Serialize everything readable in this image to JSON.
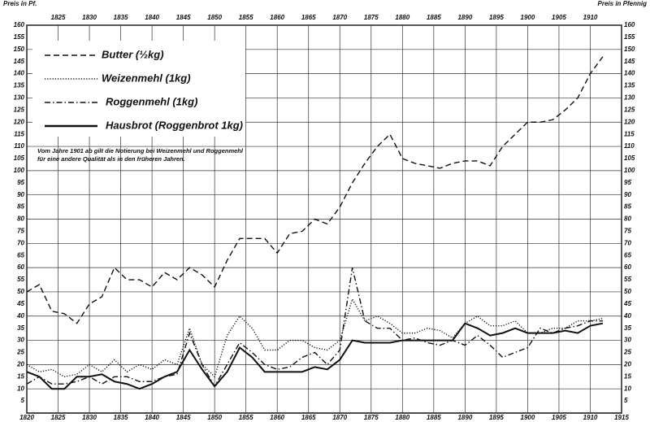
{
  "chart_data": {
    "type": "line",
    "y_label_left": "Preis in Pf.",
    "y_label_right": "Preis in Pfennig",
    "note": "Vom Jahre 1901 ab gilt die Notierung bei Weizenmehl und Roggenmehl für eine andere Qualität als in den früheren Jahren.",
    "x": [
      1820,
      1822,
      1824,
      1826,
      1828,
      1830,
      1832,
      1834,
      1836,
      1838,
      1840,
      1842,
      1844,
      1846,
      1848,
      1850,
      1852,
      1854,
      1856,
      1858,
      1860,
      1862,
      1864,
      1866,
      1868,
      1870,
      1872,
      1874,
      1876,
      1878,
      1880,
      1882,
      1884,
      1886,
      1888,
      1890,
      1892,
      1894,
      1896,
      1898,
      1900,
      1902,
      1904,
      1906,
      1908,
      1910,
      1912
    ],
    "series": [
      {
        "name": "Butter (½kg)",
        "color": "#111111",
        "dash": "dashed",
        "values": [
          50,
          53,
          42,
          41,
          37,
          45,
          48,
          60,
          55,
          55,
          52,
          58,
          55,
          60,
          57,
          52,
          63,
          72,
          72,
          72,
          66,
          74,
          75,
          80,
          78,
          85,
          95,
          103,
          110,
          115,
          105,
          103,
          102,
          101,
          103,
          104,
          104,
          102,
          110,
          115,
          120,
          120,
          121,
          125,
          130,
          140,
          147
        ]
      },
      {
        "name": "Weizenmehl (1kg)",
        "color": "#111111",
        "dash": "dotted",
        "values": [
          20,
          17,
          18,
          15,
          16,
          20,
          17,
          22,
          17,
          20,
          18,
          22,
          20,
          35,
          20,
          15,
          32,
          40,
          35,
          26,
          26,
          30,
          30,
          27,
          26,
          30,
          47,
          38,
          40,
          37,
          33,
          33,
          35,
          34,
          31,
          37,
          40,
          36,
          36,
          38,
          33,
          33,
          35,
          35,
          38,
          38,
          39
        ]
      },
      {
        "name": "Roggenmehl (1kg)",
        "color": "#111111",
        "dash": "dashdot",
        "values": [
          12,
          15,
          12,
          12,
          13,
          15,
          12,
          15,
          15,
          13,
          13,
          15,
          16,
          33,
          20,
          11,
          20,
          29,
          25,
          20,
          18,
          19,
          23,
          25,
          20,
          26,
          60,
          38,
          35,
          35,
          30,
          31,
          29,
          28,
          30,
          28,
          32,
          28,
          23,
          25,
          27,
          35,
          33,
          35,
          36,
          38,
          38
        ]
      },
      {
        "name": "Hausbrot (Roggenbrot 1kg)",
        "color": "#111111",
        "dash": "solid",
        "values": [
          17,
          15,
          10,
          10,
          15,
          15,
          16,
          13,
          12,
          10,
          12,
          15,
          17,
          26,
          18,
          11,
          17,
          27,
          23,
          17,
          17,
          17,
          17,
          19,
          18,
          22,
          30,
          29,
          29,
          29,
          30,
          30,
          30,
          30,
          30,
          37,
          35,
          32,
          33,
          35,
          33,
          33,
          33,
          34,
          33,
          36,
          37
        ]
      }
    ],
    "xlim": [
      1820,
      1915
    ],
    "xticks": [
      1820,
      1825,
      1830,
      1835,
      1840,
      1845,
      1850,
      1855,
      1860,
      1865,
      1870,
      1875,
      1880,
      1885,
      1890,
      1895,
      1900,
      1905,
      1910,
      1915
    ],
    "ylim": [
      0,
      160
    ],
    "yticks": [
      5,
      10,
      15,
      20,
      25,
      30,
      35,
      40,
      45,
      50,
      55,
      60,
      65,
      70,
      75,
      80,
      85,
      90,
      95,
      100,
      105,
      110,
      115,
      120,
      125,
      130,
      135,
      140,
      145,
      150,
      155,
      160
    ],
    "grid": true
  }
}
